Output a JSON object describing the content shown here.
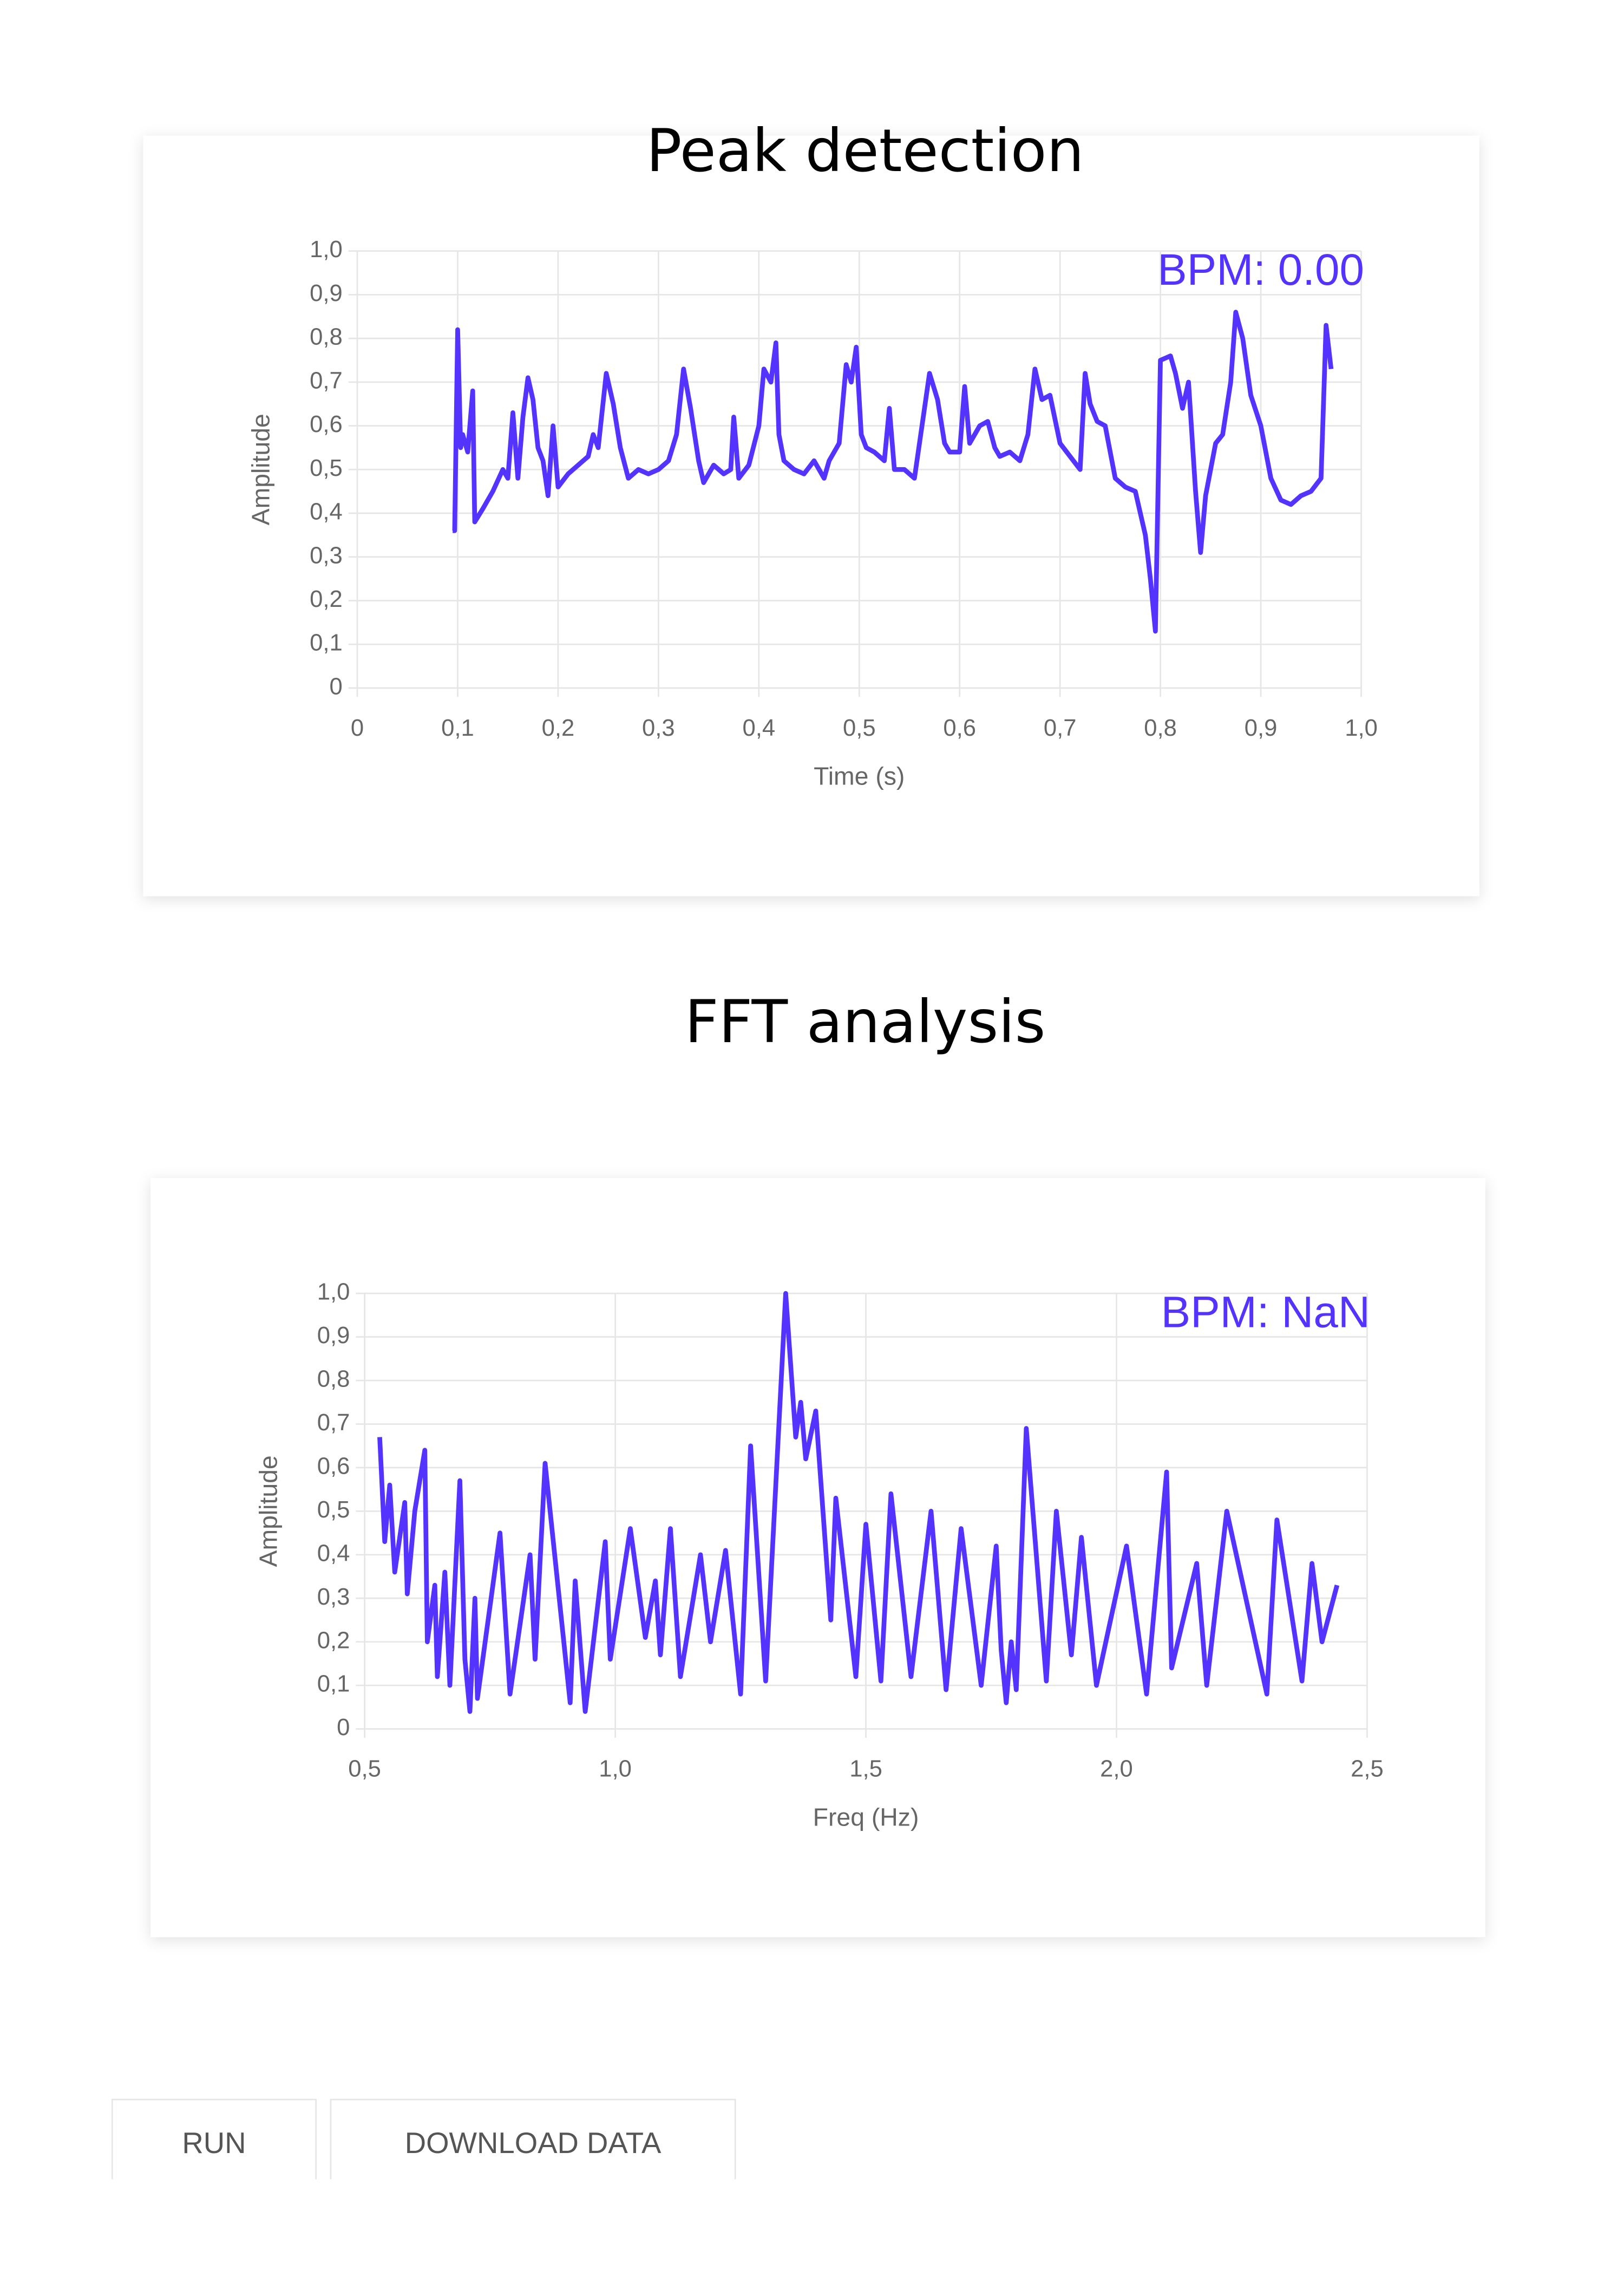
{
  "chart_data": [
    {
      "type": "line",
      "title": "Peak detection",
      "annotation": "BPM: 0.00",
      "x_label": "Time (s)",
      "y_label": "Amplitude",
      "color": "#5533ff",
      "grid": true,
      "xlim": [
        0,
        1.0
      ],
      "ylim": [
        0,
        1.0
      ],
      "xticks": [
        0,
        {
          "value": 0.1,
          "label": "0,1"
        },
        {
          "value": 0.2,
          "label": "0,2"
        },
        {
          "value": 0.3,
          "label": "0,3"
        },
        {
          "value": 0.4,
          "label": "0,4"
        },
        {
          "value": 0.5,
          "label": "0,5"
        },
        {
          "value": 0.6,
          "label": "0,6"
        },
        {
          "value": 0.7,
          "label": "0,7"
        },
        {
          "value": 0.8,
          "label": "0,8"
        },
        {
          "value": 0.9,
          "label": "0,9"
        },
        {
          "value": 1.0,
          "label": "1,0"
        }
      ],
      "yticks": [
        0,
        {
          "value": 0.1,
          "label": "0,1"
        },
        {
          "value": 0.2,
          "label": "0,2"
        },
        {
          "value": 0.3,
          "label": "0,3"
        },
        {
          "value": 0.4,
          "label": "0,4"
        },
        {
          "value": 0.5,
          "label": "0,5"
        },
        {
          "value": 0.6,
          "label": "0,6"
        },
        {
          "value": 0.7,
          "label": "0,7"
        },
        {
          "value": 0.8,
          "label": "0,8"
        },
        {
          "value": 0.9,
          "label": "0,9"
        },
        {
          "value": 1.0,
          "label": "1,0"
        }
      ],
      "x": [
        0.095,
        0.097,
        0.1,
        0.103,
        0.105,
        0.11,
        0.115,
        0.117,
        0.125,
        0.135,
        0.145,
        0.15,
        0.155,
        0.16,
        0.165,
        0.17,
        0.175,
        0.18,
        0.185,
        0.19,
        0.195,
        0.2,
        0.21,
        0.22,
        0.23,
        0.235,
        0.24,
        0.248,
        0.255,
        0.262,
        0.27,
        0.28,
        0.29,
        0.3,
        0.31,
        0.318,
        0.325,
        0.332,
        0.34,
        0.345,
        0.355,
        0.365,
        0.372,
        0.375,
        0.38,
        0.39,
        0.4,
        0.405,
        0.412,
        0.417,
        0.42,
        0.425,
        0.435,
        0.445,
        0.455,
        0.465,
        0.47,
        0.48,
        0.487,
        0.492,
        0.497,
        0.502,
        0.507,
        0.515,
        0.525,
        0.53,
        0.535,
        0.545,
        0.555,
        0.565,
        0.57,
        0.578,
        0.585,
        0.59,
        0.6,
        0.605,
        0.61,
        0.62,
        0.628,
        0.635,
        0.64,
        0.65,
        0.66,
        0.668,
        0.675,
        0.682,
        0.69,
        0.7,
        0.71,
        0.72,
        0.725,
        0.73,
        0.737,
        0.745,
        0.755,
        0.765,
        0.775,
        0.785,
        0.79,
        0.795,
        0.8,
        0.81,
        0.815,
        0.822,
        0.828,
        0.835,
        0.84,
        0.845,
        0.855,
        0.862,
        0.87,
        0.875,
        0.882,
        0.89,
        0.9,
        0.91,
        0.92,
        0.93,
        0.94,
        0.95,
        0.96,
        0.965,
        0.97
      ],
      "values": [
        0.36,
        0.36,
        0.82,
        0.55,
        0.58,
        0.54,
        0.68,
        0.38,
        0.41,
        0.45,
        0.5,
        0.48,
        0.63,
        0.48,
        0.62,
        0.71,
        0.66,
        0.55,
        0.52,
        0.44,
        0.6,
        0.46,
        0.49,
        0.51,
        0.53,
        0.58,
        0.55,
        0.72,
        0.65,
        0.55,
        0.48,
        0.5,
        0.49,
        0.5,
        0.52,
        0.58,
        0.73,
        0.64,
        0.52,
        0.47,
        0.51,
        0.49,
        0.5,
        0.62,
        0.48,
        0.51,
        0.6,
        0.73,
        0.7,
        0.79,
        0.58,
        0.52,
        0.5,
        0.49,
        0.52,
        0.48,
        0.52,
        0.56,
        0.74,
        0.7,
        0.78,
        0.58,
        0.55,
        0.54,
        0.52,
        0.64,
        0.5,
        0.5,
        0.48,
        0.64,
        0.72,
        0.66,
        0.56,
        0.54,
        0.54,
        0.69,
        0.56,
        0.6,
        0.61,
        0.55,
        0.53,
        0.54,
        0.52,
        0.58,
        0.73,
        0.66,
        0.67,
        0.56,
        0.53,
        0.5,
        0.72,
        0.65,
        0.61,
        0.6,
        0.48,
        0.46,
        0.45,
        0.35,
        0.25,
        0.13,
        0.75,
        0.76,
        0.72,
        0.64,
        0.7,
        0.45,
        0.31,
        0.44,
        0.56,
        0.58,
        0.7,
        0.86,
        0.8,
        0.67,
        0.6,
        0.48,
        0.43,
        0.42,
        0.44,
        0.45,
        0.48,
        0.83,
        0.73
      ]
    },
    {
      "type": "line",
      "title": "FFT analysis",
      "annotation": "BPM: NaN",
      "x_label": "Freq (Hz)",
      "y_label": "Amplitude",
      "color": "#5533ff",
      "grid": true,
      "xlim": [
        0.5,
        2.5
      ],
      "ylim": [
        0,
        1.0
      ],
      "xticks": [
        {
          "value": 0.5,
          "label": "0,5"
        },
        {
          "value": 1.0,
          "label": "1,0"
        },
        {
          "value": 1.5,
          "label": "1,5"
        },
        {
          "value": 2.0,
          "label": "2,0"
        },
        {
          "value": 2.5,
          "label": "2,5"
        }
      ],
      "yticks": [
        0,
        {
          "value": 0.1,
          "label": "0,1"
        },
        {
          "value": 0.2,
          "label": "0,2"
        },
        {
          "value": 0.3,
          "label": "0,3"
        },
        {
          "value": 0.4,
          "label": "0,4"
        },
        {
          "value": 0.5,
          "label": "0,5"
        },
        {
          "value": 0.6,
          "label": "0,6"
        },
        {
          "value": 0.7,
          "label": "0,7"
        },
        {
          "value": 0.8,
          "label": "0,8"
        },
        {
          "value": 0.9,
          "label": "0,9"
        },
        {
          "value": 1.0,
          "label": "1,0"
        }
      ],
      "x": [
        0.53,
        0.54,
        0.55,
        0.56,
        0.58,
        0.585,
        0.6,
        0.62,
        0.625,
        0.64,
        0.645,
        0.66,
        0.67,
        0.69,
        0.7,
        0.71,
        0.72,
        0.725,
        0.77,
        0.79,
        0.83,
        0.84,
        0.86,
        0.91,
        0.92,
        0.94,
        0.98,
        0.99,
        1.03,
        1.06,
        1.08,
        1.09,
        1.11,
        1.13,
        1.17,
        1.19,
        1.22,
        1.25,
        1.27,
        1.3,
        1.34,
        1.36,
        1.37,
        1.38,
        1.4,
        1.43,
        1.44,
        1.48,
        1.5,
        1.53,
        1.55,
        1.59,
        1.63,
        1.66,
        1.69,
        1.73,
        1.76,
        1.77,
        1.78,
        1.79,
        1.8,
        1.82,
        1.86,
        1.88,
        1.91,
        1.93,
        1.96,
        2.02,
        2.06,
        2.1,
        2.11,
        2.16,
        2.18,
        2.22,
        2.3,
        2.32,
        2.37,
        2.39,
        2.41,
        2.44
      ],
      "values": [
        0.67,
        0.43,
        0.56,
        0.36,
        0.52,
        0.31,
        0.5,
        0.64,
        0.2,
        0.33,
        0.12,
        0.36,
        0.1,
        0.57,
        0.16,
        0.04,
        0.3,
        0.07,
        0.45,
        0.08,
        0.4,
        0.16,
        0.61,
        0.06,
        0.34,
        0.04,
        0.43,
        0.16,
        0.46,
        0.21,
        0.34,
        0.17,
        0.46,
        0.12,
        0.4,
        0.2,
        0.41,
        0.08,
        0.65,
        0.11,
        1.0,
        0.67,
        0.75,
        0.62,
        0.73,
        0.25,
        0.53,
        0.12,
        0.47,
        0.11,
        0.54,
        0.12,
        0.5,
        0.09,
        0.46,
        0.1,
        0.42,
        0.18,
        0.06,
        0.2,
        0.09,
        0.69,
        0.11,
        0.5,
        0.17,
        0.44,
        0.1,
        0.42,
        0.08,
        0.59,
        0.14,
        0.38,
        0.1,
        0.5,
        0.08,
        0.48,
        0.11,
        0.38,
        0.2,
        0.33
      ]
    }
  ],
  "buttons": [
    "RUN",
    "DOWNLOAD DATA"
  ]
}
